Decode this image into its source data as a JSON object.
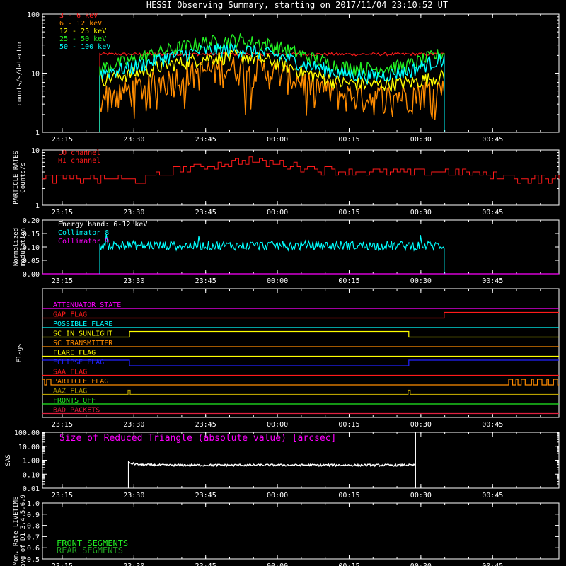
{
  "title": "HESSI Observing Summary, starting on 2017/11/04 23:10:52 UT",
  "time_ticks": [
    "23:15",
    "23:30",
    "23:45",
    "00:00",
    "00:15",
    "00:30",
    "00:45"
  ],
  "colors": {
    "axes": "#ffffff",
    "red": "#ff1a1a",
    "orange": "#ff8c00",
    "yellow": "#ffff00",
    "green": "#22ee22",
    "cyan": "#00ffff",
    "magenta": "#ff00ff",
    "blue": "#2222ff",
    "olive": "#b8a000",
    "darkgreen": "#20a020",
    "crimson": "#e02040"
  },
  "chart_data": [
    {
      "type": "line",
      "panel": "count-rates",
      "ylabel": "counts/s/detector",
      "y_scale": "log",
      "ylim": [
        1,
        100
      ],
      "y_ticks": [
        "1",
        "10",
        "100"
      ],
      "x_range_minutes": [
        0,
        108
      ],
      "series": [
        {
          "name": "3 - 6  keV",
          "color": "#ff1a1a",
          "start": 12,
          "end": 84,
          "profile": [
            21,
            21,
            21,
            21,
            21,
            21,
            21,
            21,
            21,
            21,
            21
          ]
        },
        {
          "name": "6 - 12  keV",
          "color": "#ff8c00",
          "start": 12,
          "end": 84,
          "profile": [
            4,
            5.5,
            8,
            11,
            13,
            11,
            7,
            4.5,
            4,
            4.5,
            6
          ]
        },
        {
          "name": "12 - 25  keV",
          "color": "#ffff00",
          "start": 12,
          "end": 84,
          "profile": [
            8,
            10,
            14,
            18,
            20,
            16,
            10,
            7,
            6.5,
            7,
            9
          ]
        },
        {
          "name": "25 - 50  keV",
          "color": "#22ee22",
          "start": 12,
          "end": 84,
          "profile": [
            12,
            17,
            25,
            33,
            37,
            30,
            19,
            13,
            12,
            14,
            22
          ]
        },
        {
          "name": "50 - 100  keV",
          "color": "#00ffff",
          "start": 12,
          "end": 84,
          "profile": [
            10,
            13,
            19,
            24,
            26,
            21,
            14,
            10,
            9,
            11,
            18
          ]
        }
      ]
    },
    {
      "type": "line",
      "panel": "particle-rates",
      "ylabel": [
        "PARTICLE RATES",
        "Counts/s"
      ],
      "y_scale": "log",
      "ylim": [
        1,
        10
      ],
      "y_ticks": [
        "1",
        "10"
      ],
      "series": [
        {
          "name": "LO channel",
          "color": "#ff1a1a",
          "shown": false
        },
        {
          "name": "HI channel",
          "color": "#ff1a1a",
          "profile": [
            3,
            3,
            3,
            3,
            4.5,
            5.5,
            6.5,
            5.5,
            4.5,
            4,
            4,
            4,
            4,
            3.5,
            3,
            3
          ]
        }
      ]
    },
    {
      "type": "line",
      "panel": "modulation",
      "ylabel": [
        "Normalized",
        "modulation"
      ],
      "ylim": [
        0,
        0.2
      ],
      "y_ticks": [
        "0.00",
        "0.05",
        "0.10",
        "0.15",
        "0.20"
      ],
      "annotation": "Energy band: 6-12 keV",
      "series": [
        {
          "name": "Collimator 8",
          "color": "#00ffff",
          "start": 12,
          "end": 84,
          "mean": 0.105
        },
        {
          "name": "Collimator 9",
          "color": "#ff00ff",
          "value": 0
        }
      ]
    },
    {
      "type": "line",
      "panel": "flags",
      "ylabel": "Flags",
      "series": [
        {
          "name": "ATTENUATOR_STATE",
          "color": "#ff00ff"
        },
        {
          "name": "GAP_FLAG",
          "color": "#ff1a1a"
        },
        {
          "name": "POSSIBLE_FLARE",
          "color": "#00ffff"
        },
        {
          "name": "SC_IN_SUNLIGHT",
          "color": "#ffff00"
        },
        {
          "name": "SC_TRANSMITTER",
          "color": "#ff8c00"
        },
        {
          "name": "FLARE_FLAG",
          "color": "#ffff00"
        },
        {
          "name": "ECLIPSE_FLAG",
          "color": "#2222ff"
        },
        {
          "name": "SAA_FLAG",
          "color": "#ff1a1a"
        },
        {
          "name": "PARTICLE_FLAG",
          "color": "#ff8c00"
        },
        {
          "name": "AAZ_FLAG",
          "color": "#b8a000"
        },
        {
          "name": "FRONTS_OFF",
          "color": "#22ee22"
        },
        {
          "name": "BAD_PACKETS",
          "color": "#e02040"
        }
      ]
    },
    {
      "type": "line",
      "panel": "sas",
      "ylabel": "SAS",
      "y_scale": "log",
      "ylim": [
        0.01,
        100
      ],
      "y_ticks": [
        "0.01",
        "0.10",
        "1.00",
        "10.00",
        "100.00"
      ],
      "annotation": "Size of Reduced Triangle (absolute value) [arcsec]",
      "series": [
        {
          "name": "",
          "color": "#ffffff",
          "start": 18,
          "end": 78,
          "value": 0.45
        }
      ]
    },
    {
      "type": "line",
      "panel": "livetime",
      "ylabel": [
        "Mon. Rate LIVETIME",
        "avg of D1,3,4,5,6,9"
      ],
      "ylim": [
        0.5,
        1.0
      ],
      "y_ticks": [
        "0.5",
        "0.6",
        "0.7",
        "0.8",
        "0.9",
        "1.0"
      ],
      "series": [
        {
          "name": "FRONT SEGMENTS",
          "color": "#22ee22"
        },
        {
          "name": "REAR SEGMENTS",
          "color": "#20a020"
        }
      ]
    }
  ]
}
